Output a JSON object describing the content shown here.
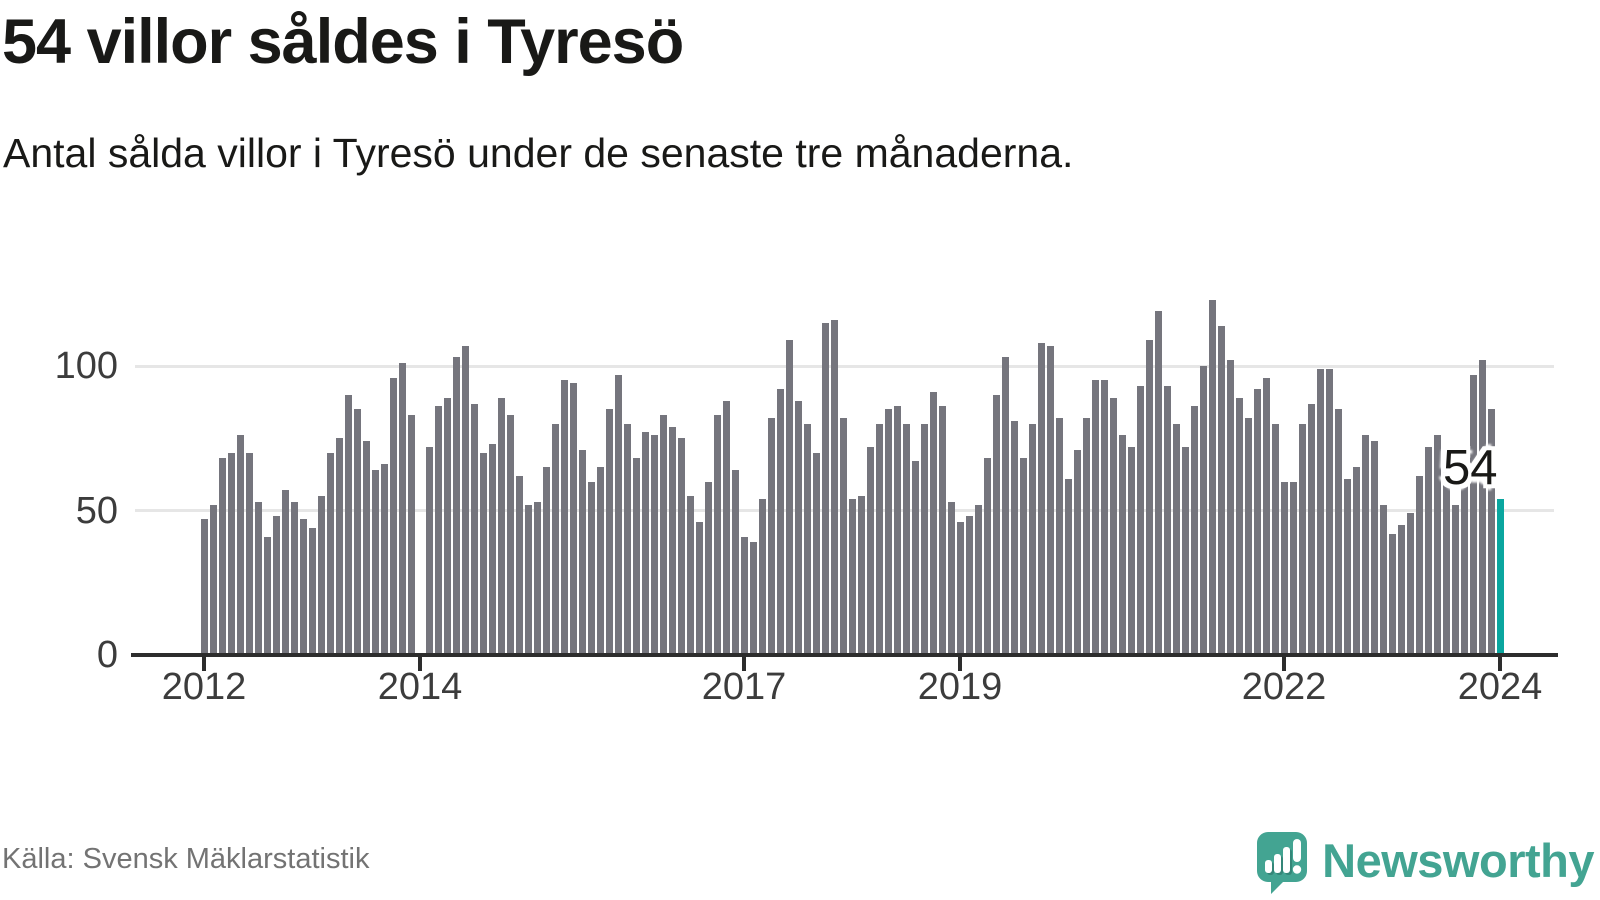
{
  "header": {
    "title": "54 villor såldes i Tyresö",
    "subtitle": "Antal sålda villor i Tyresö under de senaste tre månaderna."
  },
  "annotation": {
    "last_value_label": "54"
  },
  "footer": {
    "source": "Källa: Svensk Mäklarstatistik",
    "brand": "Newsworthy"
  },
  "colors": {
    "bar": "#75757d",
    "highlight": "#0aa69f",
    "grid": "#e6e6e6",
    "axis": "#2d2d2d",
    "tick_label": "#3c3c3c",
    "title": "#191917",
    "source": "#737373",
    "brand": "#43a492"
  },
  "chart_data": {
    "type": "bar",
    "title": "54 villor såldes i Tyresö",
    "subtitle": "Antal sålda villor i Tyresö under de senaste tre månaderna.",
    "xlabel": "",
    "ylabel": "",
    "ylim": [
      0,
      130
    ],
    "grid": "horizontal",
    "legend": "none",
    "months_start": "2012-01",
    "months_end": "2024-01",
    "yticks": [
      0,
      50,
      100
    ],
    "xticks": [
      {
        "label": "2012",
        "month_index": 0
      },
      {
        "label": "2014",
        "month_index": 24
      },
      {
        "label": "2017",
        "month_index": 60
      },
      {
        "label": "2019",
        "month_index": 84
      },
      {
        "label": "2022",
        "month_index": 120
      },
      {
        "label": "2024",
        "month_index": 144
      }
    ],
    "highlight_last_bar": true,
    "last_bar_value": 54,
    "values": [
      47,
      52,
      68,
      70,
      76,
      70,
      53,
      41,
      48,
      57,
      53,
      47,
      44,
      55,
      70,
      75,
      90,
      85,
      74,
      64,
      66,
      96,
      101,
      83,
      null,
      72,
      86,
      89,
      103,
      107,
      87,
      70,
      73,
      89,
      83,
      62,
      52,
      53,
      65,
      80,
      95,
      94,
      71,
      60,
      65,
      85,
      97,
      80,
      68,
      77,
      76,
      83,
      79,
      75,
      55,
      46,
      60,
      83,
      88,
      64,
      41,
      39,
      54,
      82,
      92,
      109,
      88,
      80,
      70,
      115,
      116,
      82,
      54,
      55,
      72,
      80,
      85,
      86,
      80,
      67,
      80,
      91,
      86,
      53,
      46,
      48,
      52,
      68,
      90,
      103,
      81,
      68,
      80,
      108,
      107,
      82,
      61,
      71,
      82,
      95,
      95,
      89,
      76,
      72,
      93,
      109,
      119,
      93,
      80,
      72,
      86,
      100,
      123,
      114,
      102,
      89,
      82,
      92,
      96,
      80,
      60,
      60,
      80,
      87,
      99,
      99,
      85,
      61,
      65,
      76,
      74,
      52,
      42,
      45,
      49,
      62,
      72,
      76,
      66,
      52,
      67,
      97,
      102,
      85,
      54
    ]
  }
}
